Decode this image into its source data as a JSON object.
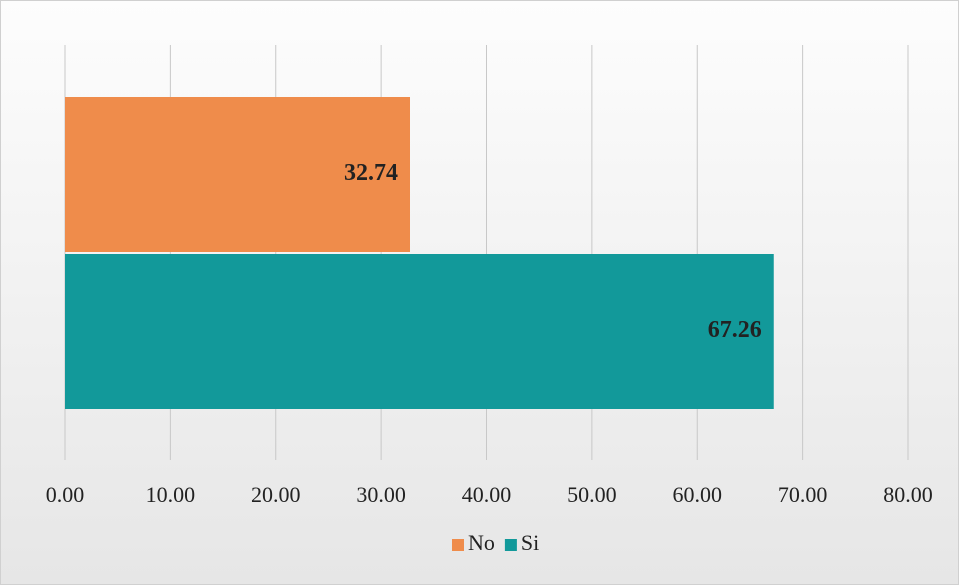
{
  "chart_data": {
    "type": "bar",
    "orientation": "horizontal",
    "categories": [
      null
    ],
    "series": [
      {
        "name": "No",
        "color": "#ef8c4b",
        "values": [
          32.74
        ]
      },
      {
        "name": "Si",
        "color": "#12999a",
        "values": [
          67.26
        ]
      }
    ],
    "xlim": [
      0,
      80
    ],
    "xticks": [
      {
        "value": 0,
        "label": "0.00"
      },
      {
        "value": 10,
        "label": "10.00"
      },
      {
        "value": 20,
        "label": "20.00"
      },
      {
        "value": 30,
        "label": "30.00"
      },
      {
        "value": 40,
        "label": "40.00"
      },
      {
        "value": 50,
        "label": "50.00"
      },
      {
        "value": 60,
        "label": "60.00"
      },
      {
        "value": 70,
        "label": "70.00"
      },
      {
        "value": 80,
        "label": "80.00"
      }
    ],
    "grid": true,
    "legend": "bottom"
  }
}
